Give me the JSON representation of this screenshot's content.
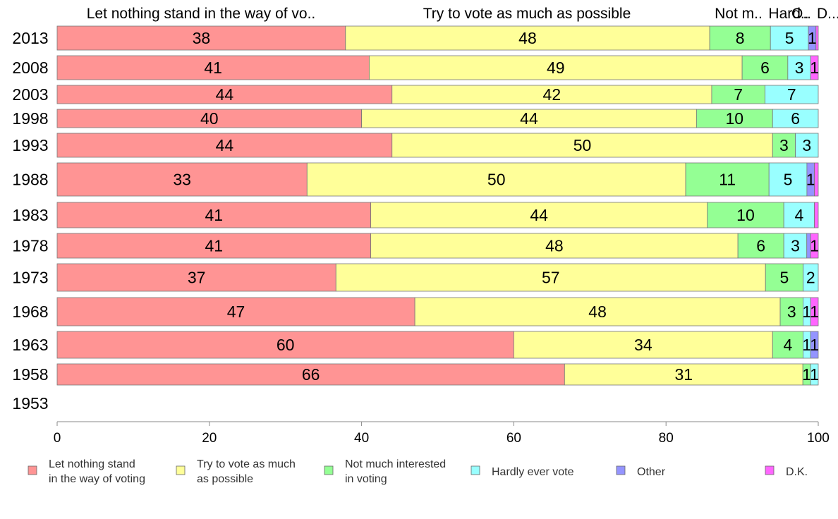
{
  "chart_data": {
    "type": "bar",
    "orientation": "horizontal",
    "stacked": true,
    "column_headers": [
      "Let nothing stand in the way of vo..",
      "Try to vote as much as possible",
      "Not m..",
      "Hard..",
      "O..",
      "D..."
    ],
    "categories": [
      "2013",
      "2008",
      "2003",
      "1998",
      "1993",
      "1988",
      "1983",
      "1978",
      "1973",
      "1968",
      "1963",
      "1958",
      "1953"
    ],
    "series": [
      {
        "name": "Let nothing stand in the way of voting",
        "legend_lines": [
          "Let nothing stand",
          "in the way of voting"
        ],
        "color": "#FF9494",
        "values": [
          38,
          41,
          44,
          40,
          44,
          33,
          41,
          41,
          37,
          47,
          60,
          66,
          null
        ]
      },
      {
        "name": "Try to vote as much as possible",
        "legend_lines": [
          "Try to vote as much",
          "as possible"
        ],
        "color": "#FFFF99",
        "values": [
          48,
          49,
          42,
          44,
          50,
          50,
          44,
          48,
          57,
          48,
          34,
          31,
          null
        ]
      },
      {
        "name": "Not much interested in voting",
        "legend_lines": [
          "Not much interested",
          "in voting"
        ],
        "color": "#94FF94",
        "values": [
          8,
          6,
          7,
          10,
          3,
          11,
          10,
          6,
          5,
          3,
          4,
          1,
          null
        ]
      },
      {
        "name": "Hardly ever vote",
        "legend_lines": [
          "Hardly ever vote"
        ],
        "color": "#99FFFF",
        "values": [
          5,
          3,
          7,
          6,
          3,
          5,
          4,
          3,
          2,
          1,
          1,
          1,
          null
        ]
      },
      {
        "name": "Other",
        "legend_lines": [
          "Other"
        ],
        "color": "#9494FF",
        "values": [
          1,
          0,
          0,
          0,
          0,
          1,
          0,
          0.5,
          0,
          0,
          1,
          0,
          null
        ]
      },
      {
        "name": "D.K.",
        "legend_lines": [
          "D.K."
        ],
        "color": "#FF66FF",
        "values": [
          0.3,
          1,
          0,
          0,
          0,
          0.5,
          0.5,
          1,
          0,
          1,
          0,
          0,
          null
        ]
      }
    ],
    "xlim": [
      0,
      100
    ],
    "xticks": [
      0,
      20,
      40,
      60,
      80,
      100
    ],
    "grid": false,
    "legend_position": "bottom"
  }
}
